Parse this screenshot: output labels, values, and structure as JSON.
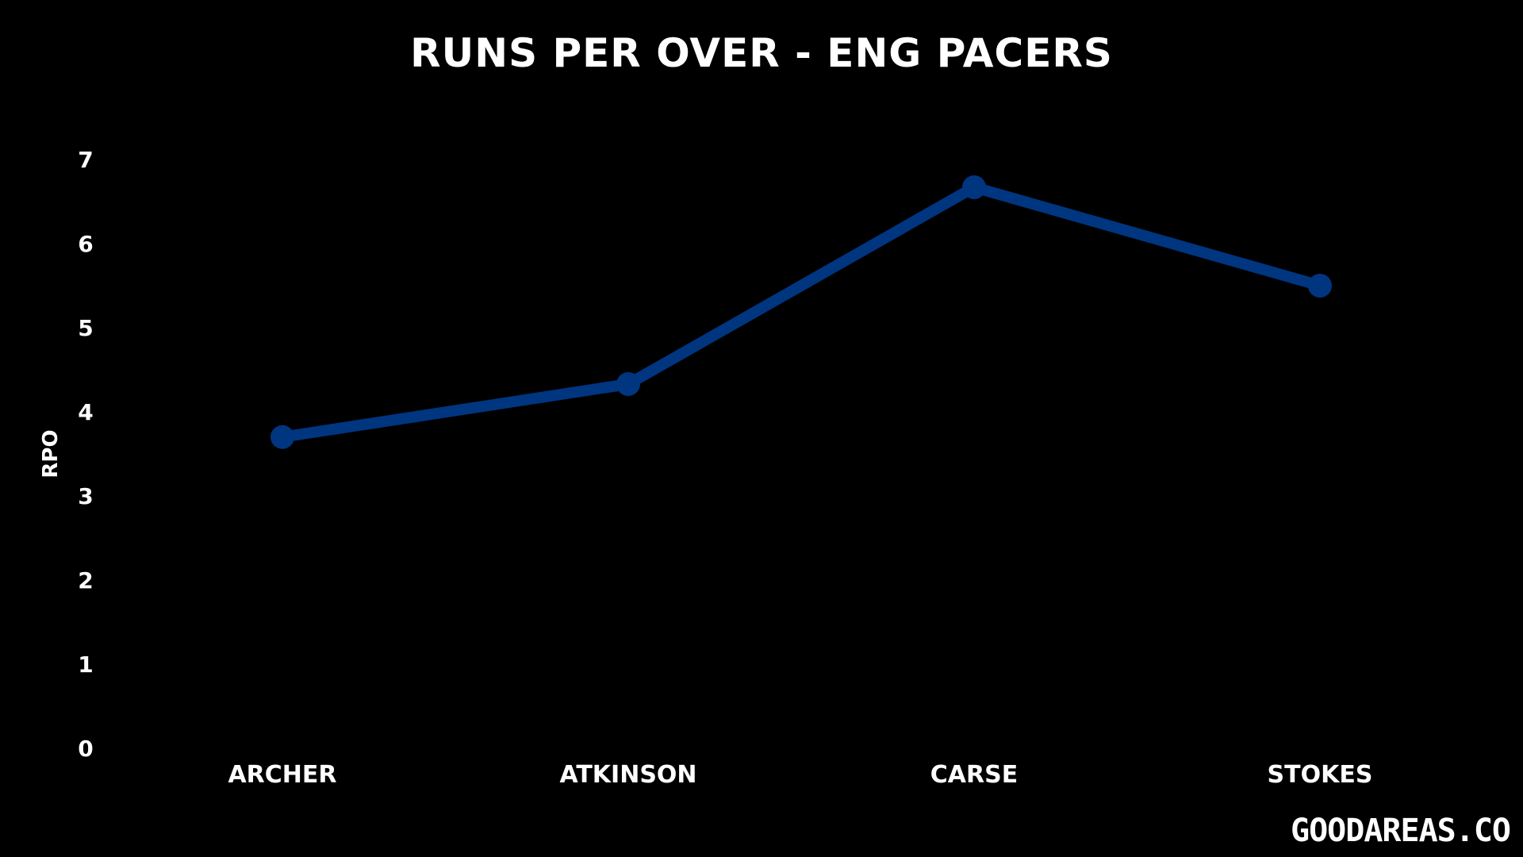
{
  "chart_data": {
    "type": "line",
    "title": "RUNS PER OVER - ENG PACERS",
    "ylabel": "RPO",
    "xlabel": "",
    "categories": [
      "ARCHER",
      "ATKINSON",
      "CARSE",
      "STOKES"
    ],
    "series": [
      {
        "values": [
          3.7,
          4.33,
          6.67,
          5.5
        ],
        "color": "#003580"
      }
    ],
    "ylim": [
      0,
      7
    ],
    "yticks": [
      "0",
      "1",
      "2",
      "3",
      "4",
      "5",
      "6",
      "7"
    ],
    "grid": false,
    "legend": "none"
  },
  "watermark": "GOODAREAS.CO",
  "colors": {
    "background": "#000000",
    "text": "#ffffff",
    "line": "#003580"
  }
}
